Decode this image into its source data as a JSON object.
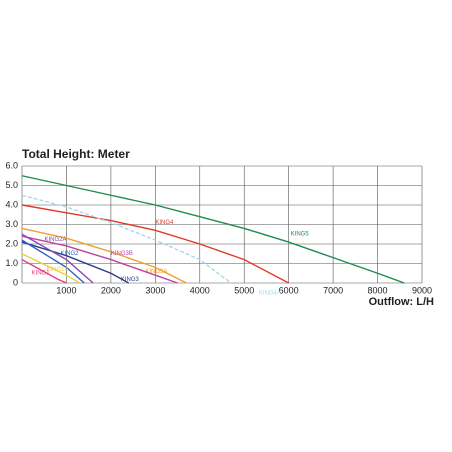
{
  "chart_data": {
    "type": "line",
    "title": "Total Height:  Meter",
    "x_label": "Outflow:  L/H",
    "xlim": [
      0,
      9000
    ],
    "xticks": [
      1000,
      2000,
      3000,
      4000,
      5000,
      6000,
      7000,
      8000,
      9000
    ],
    "ylim": [
      0,
      6
    ],
    "yticks": [
      0,
      {
        "value": 1,
        "label": "1.0"
      },
      {
        "value": 2,
        "label": "2.0"
      },
      {
        "value": 3,
        "label": "3.0"
      },
      {
        "value": 4,
        "label": "4.0"
      },
      {
        "value": 5,
        "label": "5.0"
      },
      {
        "value": 6,
        "label": "6.0"
      }
    ],
    "grid": true,
    "series": [
      {
        "name": "KING5",
        "color": "#1e8c4e",
        "x": [
          0,
          1000,
          2000,
          3000,
          4000,
          5000,
          6000,
          7000,
          8000,
          8600
        ],
        "values": [
          5.5,
          5.0,
          4.5,
          4.0,
          3.4,
          2.8,
          2.1,
          1.3,
          0.5,
          0
        ]
      },
      {
        "name": "KING4",
        "color": "#e03a2a",
        "x": [
          0,
          1000,
          2000,
          3000,
          4000,
          5000,
          6000
        ],
        "values": [
          4.0,
          3.6,
          3.2,
          2.7,
          2.0,
          1.2,
          0
        ]
      },
      {
        "name": "KING4A",
        "color": "#a8d8e8",
        "x": [
          0,
          1000,
          2000,
          3000,
          4000,
          4700
        ],
        "values": [
          4.5,
          3.9,
          3.1,
          2.2,
          1.2,
          0
        ]
      },
      {
        "name": "KING3A",
        "color": "#f0a030",
        "x": [
          0,
          1000,
          2000,
          3000,
          3700
        ],
        "values": [
          2.8,
          2.3,
          1.6,
          0.8,
          0
        ]
      },
      {
        "name": "KING3B",
        "color": "#c040a0",
        "x": [
          0,
          1000,
          2000,
          3000,
          3500
        ],
        "values": [
          2.4,
          1.9,
          1.2,
          0.4,
          0
        ]
      },
      {
        "name": "KING3",
        "color": "#2a3a8a",
        "x": [
          0,
          1000,
          2000,
          2400
        ],
        "values": [
          2.1,
          1.4,
          0.5,
          0
        ]
      },
      {
        "name": "KING2A",
        "color": "#8a4ab0",
        "x": [
          0,
          1000,
          1600
        ],
        "values": [
          2.5,
          1.2,
          0
        ]
      },
      {
        "name": "KING2",
        "color": "#3060c0",
        "x": [
          0,
          1000,
          1400
        ],
        "values": [
          2.2,
          0.8,
          0
        ]
      },
      {
        "name": "KING1A",
        "color": "#e8d040",
        "x": [
          0,
          1000,
          1300
        ],
        "values": [
          1.5,
          0.4,
          0
        ]
      },
      {
        "name": "KING1",
        "color": "#e04080",
        "x": [
          0,
          800,
          1000
        ],
        "values": [
          1.2,
          0.2,
          0
        ]
      }
    ]
  }
}
